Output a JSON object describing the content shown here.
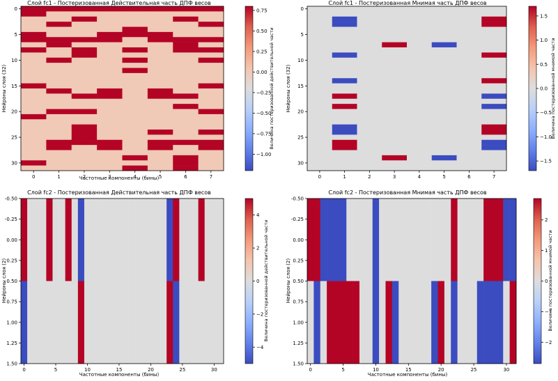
{
  "chart_data": [
    {
      "type": "heatmap",
      "title": "Слой fc1 - Постеризованная Действительная часть ДПФ весов",
      "xlabel": "Частотные компоненты (бины)",
      "ylabel": "Нейроны слоя (32)",
      "colorbar_label": "Величина постеризованной действительной части",
      "n_cols": 8,
      "n_rows": 32,
      "cell_x0": 0,
      "cell_y0": 0,
      "vmin": -1.2,
      "vmax": 0.8,
      "x_ticks": [
        0,
        1,
        2,
        3,
        4,
        5,
        6,
        7
      ],
      "y_ticks": [
        0,
        5,
        10,
        15,
        20,
        25,
        30
      ],
      "colorbar_ticks": [
        -1.0,
        -0.75,
        -0.5,
        -0.25,
        0.0,
        0.25,
        0.5,
        0.75
      ],
      "colorbar_tick_labels": [
        "−1.00",
        "−0.75",
        "−0.50",
        "−0.25",
        "0.00",
        "0.25",
        "0.50",
        "0.75"
      ],
      "matrix": [
        [
          1,
          1,
          1,
          1,
          1,
          1,
          1,
          1
        ],
        [
          1,
          0,
          0,
          0,
          0,
          0,
          0,
          0
        ],
        [
          0,
          0,
          1,
          0,
          0,
          0,
          1,
          0
        ],
        [
          0,
          1,
          0,
          0,
          0,
          0,
          0,
          1
        ],
        [
          0,
          0,
          0,
          0,
          1,
          0,
          0,
          0
        ],
        [
          1,
          0,
          0,
          1,
          1,
          1,
          0,
          0
        ],
        [
          1,
          1,
          1,
          1,
          0,
          1,
          1,
          1
        ],
        [
          0,
          1,
          0,
          0,
          0,
          0,
          1,
          0
        ],
        [
          1,
          0,
          1,
          0,
          1,
          0,
          1,
          1
        ],
        [
          0,
          0,
          1,
          0,
          0,
          0,
          0,
          0
        ],
        [
          0,
          1,
          0,
          0,
          1,
          0,
          0,
          1
        ],
        [
          0,
          0,
          0,
          0,
          0,
          0,
          0,
          0
        ],
        [
          0,
          0,
          0,
          0,
          1,
          0,
          0,
          0
        ],
        [
          0,
          0,
          0,
          0,
          0,
          0,
          0,
          0
        ],
        [
          0,
          0,
          0,
          0,
          0,
          0,
          0,
          0
        ],
        [
          1,
          0,
          0,
          0,
          0,
          0,
          0,
          1
        ],
        [
          0,
          1,
          0,
          1,
          0,
          1,
          0,
          0
        ],
        [
          0,
          0,
          1,
          1,
          0,
          1,
          1,
          0
        ],
        [
          0,
          0,
          0,
          0,
          0,
          0,
          0,
          0
        ],
        [
          0,
          0,
          0,
          0,
          0,
          0,
          1,
          0
        ],
        [
          0,
          1,
          1,
          0,
          0,
          0,
          0,
          1
        ],
        [
          1,
          0,
          0,
          0,
          0,
          0,
          0,
          0
        ],
        [
          0,
          0,
          0,
          0,
          0,
          0,
          0,
          0
        ],
        [
          0,
          0,
          1,
          0,
          0,
          0,
          0,
          0
        ],
        [
          0,
          0,
          1,
          0,
          0,
          1,
          0,
          1
        ],
        [
          0,
          0,
          1,
          0,
          0,
          0,
          0,
          0
        ],
        [
          0,
          1,
          1,
          1,
          0,
          1,
          1,
          1
        ],
        [
          0,
          1,
          0,
          1,
          0,
          1,
          0,
          1
        ],
        [
          0,
          0,
          0,
          0,
          0,
          0,
          0,
          0
        ],
        [
          0,
          0,
          0,
          0,
          1,
          0,
          1,
          0
        ],
        [
          1,
          0,
          0,
          0,
          0,
          0,
          1,
          0
        ],
        [
          0,
          0,
          0,
          0,
          1,
          0,
          1,
          0
        ]
      ]
    },
    {
      "type": "heatmap",
      "title": "Слой fc1 - Постеризованная Мнимая часть ДПФ весов",
      "xlabel": "",
      "ylabel": "Нейроны слоя (32)",
      "colorbar_label": "Величина постеризованной мнимой части",
      "n_cols": 8,
      "n_rows": 32,
      "cell_x0": 0,
      "cell_y0": 0,
      "vmin": -1.7,
      "vmax": 1.7,
      "x_ticks": [
        0,
        1,
        2,
        3,
        4,
        5,
        6,
        7
      ],
      "y_ticks": [
        0,
        5,
        10,
        15,
        20,
        25,
        30
      ],
      "colorbar_ticks": [
        -1.5,
        -1.0,
        -0.5,
        0.0,
        0.5,
        1.0,
        1.5
      ],
      "colorbar_tick_labels": [
        "−1.5",
        "−1.0",
        "−0.5",
        "0.0",
        "0.5",
        "1.0",
        "1.5"
      ],
      "matrix": [
        [
          0,
          0,
          0,
          0,
          0,
          0,
          0,
          0
        ],
        [
          0,
          0,
          0,
          0,
          0,
          0,
          0,
          0
        ],
        [
          0,
          -1.7,
          0,
          0,
          0,
          0,
          0,
          1.7
        ],
        [
          0,
          -1.7,
          0,
          0,
          0,
          0,
          0,
          1.7
        ],
        [
          0,
          0,
          0,
          0,
          0,
          0,
          0,
          0
        ],
        [
          0,
          0,
          0,
          0,
          0,
          0,
          0,
          0
        ],
        [
          0,
          0,
          0,
          0,
          0,
          0,
          0,
          0
        ],
        [
          0,
          0,
          0,
          1.7,
          0,
          -1.7,
          0,
          0
        ],
        [
          0,
          0,
          0,
          0,
          0,
          0,
          0,
          0
        ],
        [
          0,
          -1.7,
          0,
          0,
          0,
          0,
          0,
          1.7
        ],
        [
          0,
          0,
          0,
          0,
          0,
          0,
          0,
          0
        ],
        [
          0,
          0,
          0,
          0,
          0,
          0,
          0,
          0
        ],
        [
          0,
          0,
          0,
          0,
          0,
          0,
          0,
          0
        ],
        [
          0,
          0,
          0,
          0,
          0,
          0,
          0,
          0
        ],
        [
          0,
          -1.7,
          0,
          0,
          0,
          0,
          0,
          1.7
        ],
        [
          0,
          0,
          0,
          0,
          0,
          0,
          0,
          0
        ],
        [
          0,
          0,
          0,
          0,
          0,
          0,
          0,
          0
        ],
        [
          0,
          1.7,
          0,
          0,
          0,
          0,
          0,
          -1.7
        ],
        [
          0,
          0,
          0,
          0,
          0,
          0,
          0,
          0
        ],
        [
          0,
          1.7,
          0,
          0,
          0,
          0,
          0,
          -1.7
        ],
        [
          0,
          0,
          0,
          0,
          0,
          0,
          0,
          0
        ],
        [
          0,
          0,
          0,
          0,
          0,
          0,
          0,
          0
        ],
        [
          0,
          0,
          0,
          0,
          0,
          0,
          0,
          0
        ],
        [
          0,
          -1.7,
          0,
          0,
          0,
          0,
          0,
          1.7
        ],
        [
          0,
          -1.7,
          0,
          0,
          0,
          0,
          0,
          1.7
        ],
        [
          0,
          0,
          0,
          0,
          0,
          0,
          0,
          0
        ],
        [
          0,
          1.7,
          0,
          0,
          0,
          0,
          0,
          -1.7
        ],
        [
          0,
          1.7,
          0,
          0,
          0,
          0,
          0,
          -1.7
        ],
        [
          0,
          0,
          0,
          0,
          0,
          0,
          0,
          0
        ],
        [
          0,
          0,
          0,
          1.7,
          0,
          -1.7,
          0,
          0
        ],
        [
          0,
          0,
          0,
          0,
          0,
          0,
          0,
          0
        ],
        [
          0,
          0,
          0,
          0,
          0,
          0,
          0,
          0
        ]
      ]
    },
    {
      "type": "heatmap",
      "title": "Слой fc2 - Постеризованная Действительная часть ДПФ весов",
      "xlabel": "Частотные компоненты (бины)",
      "ylabel": "Нейроны слоя (2)",
      "colorbar_label": "Величина постеризованной действительной части",
      "n_cols": 32,
      "n_rows": 2,
      "cell_x0": 0,
      "cell_y0": 0,
      "vmin": -5,
      "vmax": 5,
      "x_ticks": [
        0,
        5,
        10,
        15,
        20,
        25,
        30
      ],
      "y_ticks": [
        -0.5,
        -0.25,
        0.0,
        0.25,
        0.5,
        0.75,
        1.0,
        1.25,
        1.5
      ],
      "y_tick_labels": [
        "-0.50",
        "-0.25",
        "0.00",
        "0.25",
        "0.50",
        "0.75",
        "1.00",
        "1.25",
        "1.50"
      ],
      "colorbar_ticks": [
        -4,
        -2,
        0,
        2,
        4
      ],
      "colorbar_tick_labels": [
        "−4",
        "−2",
        "0",
        "2",
        "4"
      ],
      "matrix": [
        [
          5,
          0,
          0,
          0,
          5,
          0,
          0,
          5,
          0,
          -5,
          0,
          0,
          0,
          0,
          0,
          0,
          0,
          0,
          0,
          0,
          0,
          0,
          0,
          -5,
          5,
          0,
          0,
          0,
          5,
          0,
          0,
          0
        ],
        [
          -5,
          0,
          0,
          0,
          0,
          0,
          0,
          0,
          0,
          5,
          0,
          0,
          0,
          0,
          0,
          0,
          0,
          0,
          0,
          0,
          0,
          0,
          0,
          5,
          -5,
          0,
          0,
          0,
          0,
          0,
          0,
          0
        ]
      ]
    },
    {
      "type": "heatmap",
      "title": "Слой fc2 - Постеризованная Мнимая часть ДПФ весов",
      "xlabel": "Частотные компоненты (бины)",
      "ylabel": "Нейроны слоя (2)",
      "colorbar_label": "Величина постеризованной мнимой части",
      "n_cols": 32,
      "n_rows": 2,
      "cell_x0": 0,
      "cell_y0": 0,
      "vmin": -2.7,
      "vmax": 2.7,
      "x_ticks": [
        0,
        5,
        10,
        15,
        20,
        25,
        30
      ],
      "y_ticks": [
        -0.5,
        -0.25,
        0.0,
        0.25,
        0.5,
        0.75,
        1.0,
        1.25,
        1.5
      ],
      "y_tick_labels": [
        "-0.50",
        "-0.25",
        "0.00",
        "0.25",
        "0.50",
        "0.75",
        "1.00",
        "1.25",
        "1.50"
      ],
      "colorbar_ticks": [
        -2,
        -1,
        0,
        1,
        2
      ],
      "colorbar_tick_labels": [
        "−2",
        "−1",
        "0",
        "1",
        "2"
      ],
      "matrix": [
        [
          2.7,
          2.7,
          -2.7,
          -2.7,
          -2.7,
          -2.7,
          0,
          0,
          0,
          0,
          -2.7,
          0,
          0,
          0,
          0,
          0,
          0,
          0,
          0,
          0,
          0,
          0,
          2.7,
          0,
          0,
          0,
          0,
          2.7,
          2.7,
          2.7,
          -2.7,
          -2.7
        ],
        [
          0,
          -2.7,
          0,
          2.7,
          2.7,
          2.7,
          2.7,
          2.7,
          0,
          0,
          -2.7,
          0,
          2.7,
          -2.7,
          0,
          0,
          0,
          0,
          0,
          -2.7,
          2.7,
          0,
          -2.7,
          0,
          0,
          0,
          -2.7,
          -2.7,
          -2.7,
          -2.7,
          0,
          2.7
        ]
      ]
    }
  ]
}
